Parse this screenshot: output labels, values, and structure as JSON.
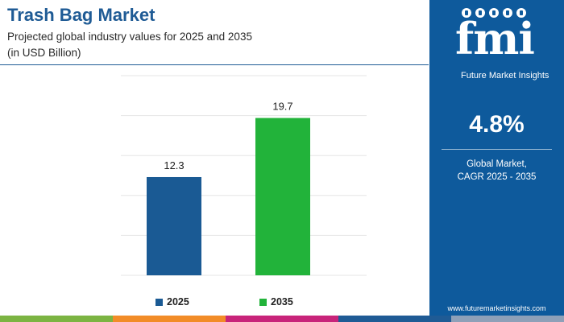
{
  "header": {
    "title": "Trash Bag Market",
    "subtitle": "Projected global industry values for 2025 and 2035",
    "unit_note": "(in USD Billion)"
  },
  "chart_data": {
    "type": "bar",
    "categories": [
      "2025",
      "2035"
    ],
    "values": [
      12.3,
      19.7
    ],
    "data_labels": [
      "12.3",
      "19.7"
    ],
    "colors": [
      "#1a5a94",
      "#22b33a"
    ],
    "ylim": [
      0,
      25
    ],
    "grid": true,
    "legend": "bottom",
    "title": "",
    "xlabel": "",
    "ylabel": ""
  },
  "legend": {
    "items": [
      {
        "label": "2025",
        "color": "#1a5a94"
      },
      {
        "label": "2035",
        "color": "#22b33a"
      }
    ]
  },
  "side_panel": {
    "logo_text": "fmi",
    "logo_subtitle": "Future Market Insights",
    "cagr_value": "4.8%",
    "cagr_label_line1": "Global Market,",
    "cagr_label_line2": "CAGR 2025 - 2035",
    "website": "www.futuremarketinsights.com",
    "background_color": "#0e5a9c"
  },
  "bottom_strip_colors": [
    "#7cb442",
    "#f28c28",
    "#c8247a",
    "#1f5b95",
    "#8ea0b8"
  ]
}
